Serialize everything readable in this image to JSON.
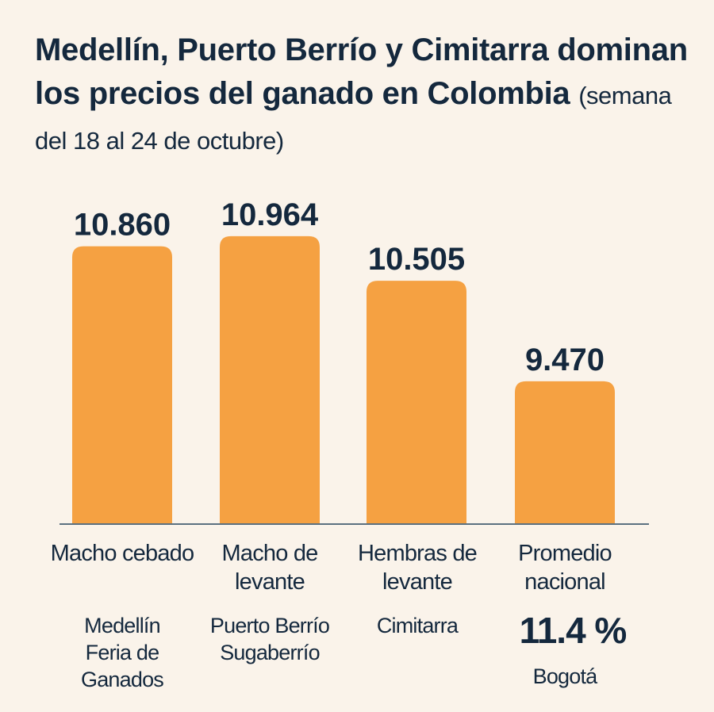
{
  "title": {
    "main": "Medellín, Puerto Berrío y Cimitarra dominan los precios del ganado en Colombia",
    "subtitle": "(semana del 18 al 24 de octubre)"
  },
  "chart_data": {
    "type": "bar",
    "title": "Medellín, Puerto Berrío y Cimitarra dominan los precios del ganado en Colombia",
    "subtitle": "(semana del 18 al 24 de octubre)",
    "categories": [
      "Macho cebado",
      "Macho de levante",
      "Hembras de levante",
      "Promedio nacional"
    ],
    "values": [
      10860,
      10964,
      10505,
      9470
    ],
    "value_labels": [
      "10.860",
      "10.964",
      "10.505",
      "9.470"
    ],
    "locations": [
      [
        "Medellín",
        "Feria de",
        "Ganados"
      ],
      [
        "Puerto Berrío",
        "Sugaberrío"
      ],
      [
        "Cimitarra"
      ],
      [
        "Bogotá"
      ]
    ],
    "annotation": "11.4 %",
    "ylim": [
      8000,
      11200
    ],
    "grid": false,
    "legend": "none",
    "colors": {
      "bar": "#f5a142",
      "text": "#14283d",
      "baseline": "#5b7080",
      "background": "#faf3ea"
    }
  }
}
